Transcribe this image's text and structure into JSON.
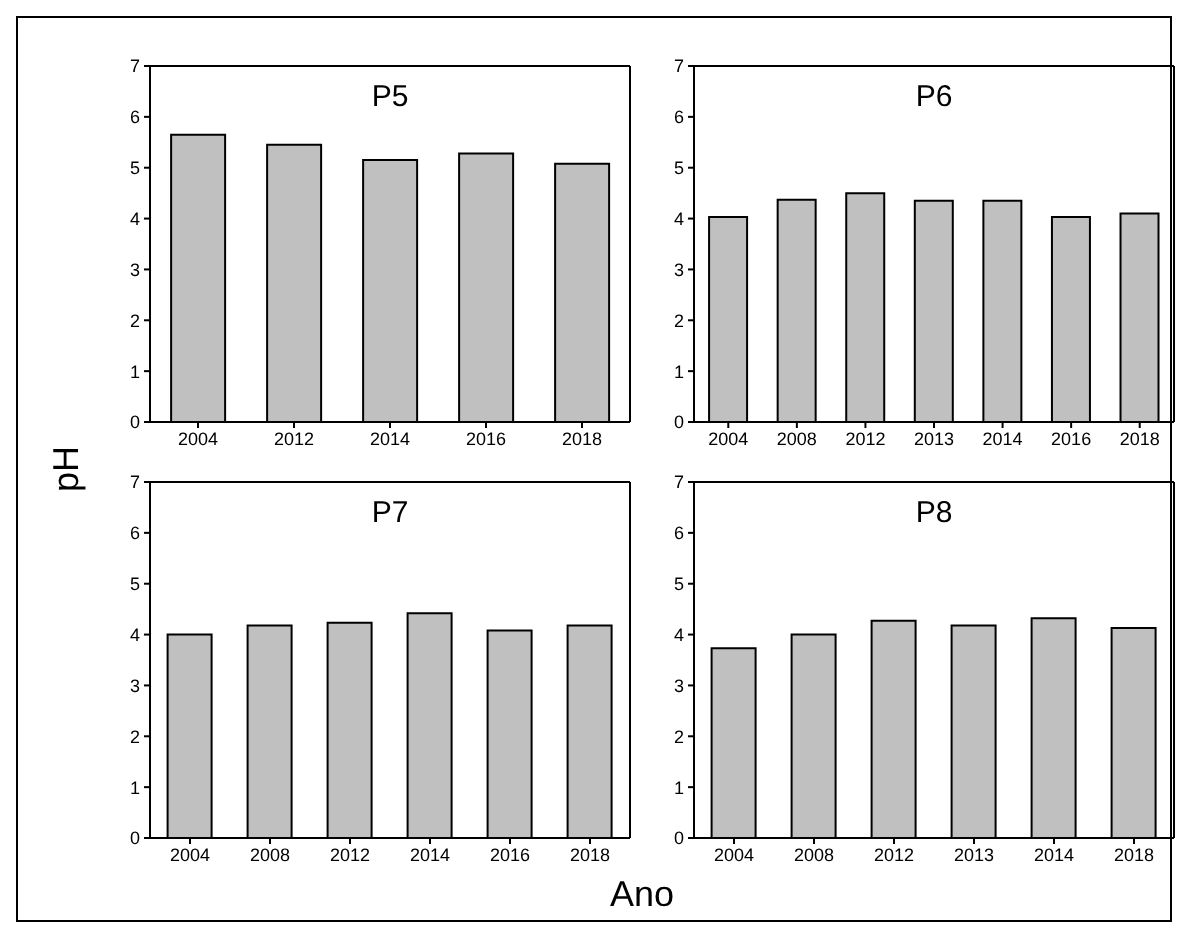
{
  "chart_data": [
    {
      "type": "bar",
      "title": "P5",
      "xlabel": "Ano",
      "ylabel": "pH",
      "categories": [
        "2004",
        "2012",
        "2014",
        "2016",
        "2018"
      ],
      "values": [
        5.65,
        5.45,
        5.15,
        5.28,
        5.08
      ],
      "color": "#c0c0c0",
      "ylim": [
        0,
        7
      ],
      "yticks": [
        0,
        1,
        2,
        3,
        4,
        5,
        6,
        7
      ],
      "grid": false,
      "legend": false
    },
    {
      "type": "bar",
      "title": "P6",
      "categories": [
        "2004",
        "2008",
        "2012",
        "2013",
        "2014",
        "2016",
        "2018"
      ],
      "values": [
        4.03,
        4.37,
        4.5,
        4.35,
        4.35,
        4.03,
        4.1
      ],
      "color": "#c0c0c0",
      "ylim": [
        0,
        7
      ],
      "yticks": [
        0,
        1,
        2,
        3,
        4,
        5,
        6,
        7
      ],
      "grid": false,
      "legend": false
    },
    {
      "type": "bar",
      "title": "P7",
      "categories": [
        "2004",
        "2008",
        "2012",
        "2014",
        "2016",
        "2018"
      ],
      "values": [
        4.0,
        4.18,
        4.23,
        4.42,
        4.08,
        4.18
      ],
      "color": "#c0c0c0",
      "ylim": [
        0,
        7
      ],
      "yticks": [
        0,
        1,
        2,
        3,
        4,
        5,
        6,
        7
      ],
      "grid": false,
      "legend": false
    },
    {
      "type": "bar",
      "title": "P8",
      "categories": [
        "2004",
        "2008",
        "2012",
        "2013",
        "2014",
        "2018"
      ],
      "values": [
        3.73,
        4.0,
        4.27,
        4.18,
        4.32,
        4.13
      ],
      "color": "#c0c0c0",
      "ylim": [
        0,
        7
      ],
      "yticks": [
        0,
        1,
        2,
        3,
        4,
        5,
        6,
        7
      ],
      "grid": false,
      "legend": false
    }
  ]
}
